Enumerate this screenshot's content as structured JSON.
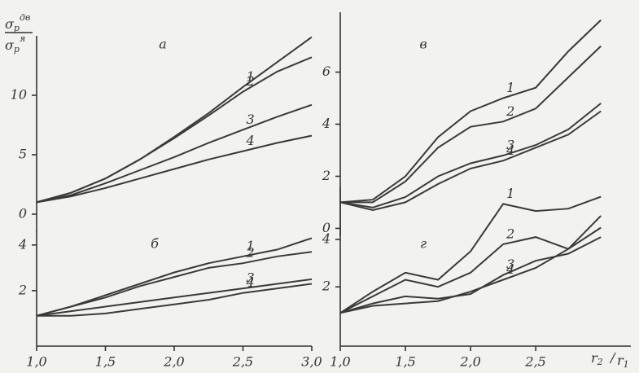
{
  "chart_data": [
    {
      "type": "line",
      "title": "а",
      "ylabel": {
        "numerator": {
          "base": "σ",
          "sub": "p",
          "sup": "дв"
        },
        "denominator": {
          "base": "σ",
          "sub": "p",
          "sup": "я"
        }
      },
      "x": [
        1.0,
        1.25,
        1.5,
        1.75,
        2.0,
        2.25,
        2.5,
        2.75,
        3.0
      ],
      "xlim": [
        1.0,
        3.0
      ],
      "ylim": [
        -1,
        15
      ],
      "yticks": [
        0,
        5,
        10
      ],
      "color": "#3a3a3a",
      "series": [
        {
          "name": "1",
          "values": [
            1,
            1.8,
            3,
            4.6,
            6.5,
            8.5,
            10.7,
            12.8,
            14.9
          ]
        },
        {
          "name": "2",
          "values": [
            1,
            1.8,
            3,
            4.6,
            6.4,
            8.3,
            10.3,
            12,
            13.2
          ]
        },
        {
          "name": "3",
          "values": [
            1,
            1.6,
            2.6,
            3.7,
            4.8,
            6,
            7.1,
            8.2,
            9.2
          ]
        },
        {
          "name": "4",
          "values": [
            1,
            1.5,
            2.2,
            3,
            3.8,
            4.6,
            5.3,
            6,
            6.6
          ]
        }
      ]
    },
    {
      "type": "line",
      "title": "б",
      "x": [
        1.0,
        1.25,
        1.5,
        1.75,
        2.0,
        2.25,
        2.5,
        2.75,
        3.0
      ],
      "xlim": [
        1.0,
        3.0
      ],
      "xticks": [
        {
          "value": 1.0,
          "label": "1,0"
        },
        {
          "value": 1.5,
          "label": "1,5"
        },
        {
          "value": 2.0,
          "label": "2,0"
        },
        {
          "value": 2.5,
          "label": "2,5"
        },
        {
          "value": 3.0,
          "label": "3,0"
        }
      ],
      "ylim": [
        -0.43,
        4.6
      ],
      "yticks": [
        2,
        4
      ],
      "color": "#3a3a3a",
      "series": [
        {
          "name": "1",
          "values": [
            0.9,
            1.3,
            1.8,
            2.3,
            2.8,
            3.2,
            3.5,
            3.8,
            4.3
          ]
        },
        {
          "name": "2",
          "values": [
            0.9,
            1.3,
            1.7,
            2.2,
            2.6,
            3,
            3.2,
            3.5,
            3.7
          ]
        },
        {
          "name": "3",
          "values": [
            0.9,
            1.1,
            1.3,
            1.5,
            1.7,
            1.9,
            2.1,
            2.3,
            2.5
          ]
        },
        {
          "name": "4",
          "values": [
            0.9,
            0.9,
            1.0,
            1.2,
            1.4,
            1.6,
            1.9,
            2.1,
            2.3
          ]
        }
      ]
    },
    {
      "type": "line",
      "title": "в",
      "x": [
        1.0,
        1.25,
        1.5,
        1.75,
        2.0,
        2.25,
        2.5,
        2.75,
        3.0
      ],
      "xlim": [
        1.0,
        3.23
      ],
      "ylim": [
        -0.3,
        8.3
      ],
      "yticks": [
        0,
        2,
        4,
        6
      ],
      "color": "#3a3a3a",
      "series": [
        {
          "name": "1",
          "values": [
            1,
            1.1,
            2,
            3.5,
            4.5,
            5,
            5.4,
            6.8,
            8
          ]
        },
        {
          "name": "2",
          "values": [
            1,
            1.0,
            1.8,
            3.1,
            3.9,
            4.1,
            4.6,
            5.8,
            7
          ]
        },
        {
          "name": "3",
          "values": [
            1,
            0.8,
            1.2,
            2,
            2.5,
            2.8,
            3.2,
            3.8,
            4.8
          ]
        },
        {
          "name": "4",
          "values": [
            1,
            0.7,
            1,
            1.7,
            2.3,
            2.6,
            3.1,
            3.6,
            4.5
          ]
        }
      ]
    },
    {
      "type": "line",
      "title": "г",
      "xlabel": {
        "numerator": {
          "base": "r",
          "sub": "2"
        },
        "separator": "/",
        "denominator": {
          "base": "r",
          "sub": "1"
        }
      },
      "x": [
        1.0,
        1.25,
        1.5,
        1.75,
        2.0,
        2.25,
        2.5,
        2.75,
        3.0
      ],
      "xlim": [
        1.0,
        3.23
      ],
      "xticks": [
        {
          "value": 1.0,
          "label": "1,0"
        },
        {
          "value": 1.5,
          "label": "1,5"
        },
        {
          "value": 2.0,
          "label": "2,0"
        },
        {
          "value": 2.5,
          "label": "2,5"
        }
      ],
      "ylim": [
        -0.5,
        6.2
      ],
      "yticks": [
        2,
        4
      ],
      "color": "#3a3a3a",
      "series": [
        {
          "name": "1",
          "values": [
            0.9,
            1.8,
            2.6,
            2.3,
            3.5,
            5.5,
            5.2,
            5.3,
            5.8
          ]
        },
        {
          "name": "2",
          "values": [
            0.9,
            1.6,
            2.3,
            2.0,
            2.6,
            3.8,
            4.1,
            3.6,
            5.0
          ]
        },
        {
          "name": "3",
          "values": [
            0.9,
            1.3,
            1.6,
            1.5,
            1.7,
            2.5,
            3.1,
            3.4,
            4.1
          ]
        },
        {
          "name": "4",
          "values": [
            0.9,
            1.2,
            1.3,
            1.4,
            1.8,
            2.3,
            2.8,
            3.6,
            4.5
          ]
        }
      ]
    }
  ]
}
